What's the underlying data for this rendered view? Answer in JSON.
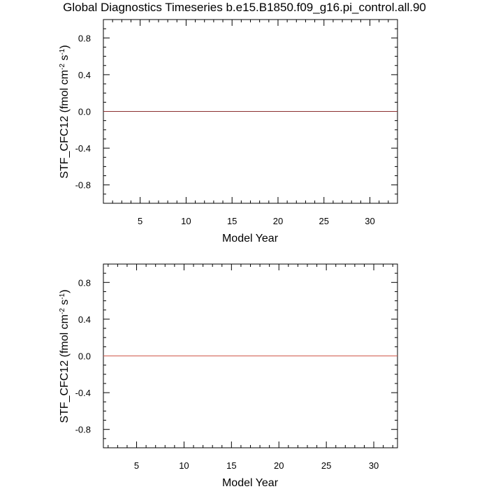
{
  "figure": {
    "title": "Global Diagnostics Timeseries b.e15.B1850.f09_g16.pi_control.all.90"
  },
  "chart_data": [
    {
      "type": "line",
      "xlabel": "Model Year",
      "ylabel_main": "STF_CFC12 (fmol cm",
      "ylabel_sup1": "-2",
      "ylabel_mid": " s",
      "ylabel_sup2": "-1",
      "ylabel_end": ")",
      "xlim": [
        1,
        33
      ],
      "ylim": [
        -1,
        1
      ],
      "x_ticks": [
        5,
        10,
        15,
        20,
        25,
        30
      ],
      "x_minor_step": 1,
      "y_ticks": [
        0.8,
        0.4,
        0.0,
        -0.4,
        -0.8
      ],
      "y_tick_labels": [
        "0.8",
        "0.4",
        "0.0",
        "-0.4",
        "-0.8"
      ],
      "y_minor_step": 0.1,
      "zero_line": true,
      "grid": false,
      "series": [
        {
          "color": "#8b2e2e",
          "x": [
            1,
            33
          ],
          "y": [
            0,
            0
          ]
        }
      ]
    },
    {
      "type": "line",
      "xlabel": "Model Year",
      "ylabel_main": "STF_CFC12 (fmol cm",
      "ylabel_sup1": "-2",
      "ylabel_mid": " s",
      "ylabel_sup2": "-1",
      "ylabel_end": ")",
      "xlim": [
        1.5,
        32.5
      ],
      "ylim": [
        -1,
        1
      ],
      "x_ticks": [
        5,
        10,
        15,
        20,
        25,
        30
      ],
      "x_minor_step": 1,
      "y_ticks": [
        0.8,
        0.4,
        0.0,
        -0.4,
        -0.8
      ],
      "y_tick_labels": [
        "0.8",
        "0.4",
        "0.0",
        "-0.4",
        "-0.8"
      ],
      "y_minor_step": 0.1,
      "zero_line": true,
      "grid": false,
      "series": [
        {
          "color": "#d0584a",
          "x": [
            1.5,
            32.5
          ],
          "y": [
            0,
            0
          ]
        }
      ]
    }
  ]
}
